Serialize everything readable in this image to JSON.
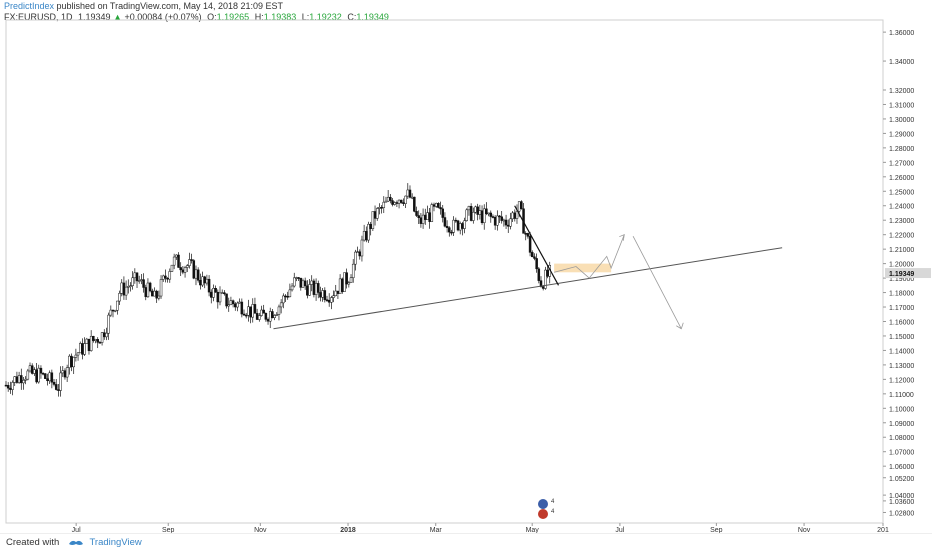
{
  "header": {
    "author": "PredictIndex",
    "published_text": " published on TradingView.com, May 14, 2018 21:09 EST",
    "symbol": "FX:EURUSD, 1D",
    "last": "1.19349",
    "arrow": "▲",
    "change": "+0.00084 (+0.07%)",
    "o_label": "O:",
    "o": "1.19265",
    "h_label": "H:",
    "h": "1.19383",
    "l_label": "L:",
    "l": "1.19232",
    "c_label": "C:",
    "c": "1.19349"
  },
  "footer": {
    "created_with": "Created with",
    "brand": "TradingView"
  },
  "colors": {
    "accent": "#3a86c7",
    "up": "#26a63a",
    "zone": "#f8d9a8",
    "price_badge": "#d8d8d8"
  },
  "chart_data": {
    "type": "candlestick",
    "symbol": "EURUSD",
    "timeframe": "1D",
    "x_tick_labels": [
      "Jul",
      "Sep",
      "Nov",
      "2018",
      "Mar",
      "May",
      "Jul",
      "Sep",
      "Nov",
      "201"
    ],
    "y_tick_labels": [
      "1.36000",
      "1.34000",
      "1.32000",
      "1.31000",
      "1.30000",
      "1.29000",
      "1.28000",
      "1.27000",
      "1.26000",
      "1.25000",
      "1.24000",
      "1.23000",
      "1.22000",
      "1.21000",
      "1.20000",
      "1.19000",
      "1.18000",
      "1.17000",
      "1.16000",
      "1.15000",
      "1.14000",
      "1.13000",
      "1.12000",
      "1.11000",
      "1.10000",
      "1.09000",
      "1.08000",
      "1.07000",
      "1.06000",
      "1.05200",
      "1.04000",
      "1.03600",
      "1.02800"
    ],
    "ylim": [
      1.0228,
      1.367
    ],
    "last_price_label": "1.19349",
    "price_path": [
      {
        "t": 0.0,
        "p": 1.116
      },
      {
        "t": 0.02,
        "p": 1.124
      },
      {
        "t": 0.04,
        "p": 1.123
      },
      {
        "t": 0.06,
        "p": 1.115
      },
      {
        "t": 0.07,
        "p": 1.132
      },
      {
        "t": 0.09,
        "p": 1.143
      },
      {
        "t": 0.11,
        "p": 1.151
      },
      {
        "t": 0.13,
        "p": 1.181
      },
      {
        "t": 0.15,
        "p": 1.189
      },
      {
        "t": 0.17,
        "p": 1.175
      },
      {
        "t": 0.19,
        "p": 1.202
      },
      {
        "t": 0.21,
        "p": 1.198
      },
      {
        "t": 0.23,
        "p": 1.183
      },
      {
        "t": 0.25,
        "p": 1.174
      },
      {
        "t": 0.27,
        "p": 1.171
      },
      {
        "t": 0.29,
        "p": 1.162
      },
      {
        "t": 0.31,
        "p": 1.17
      },
      {
        "t": 0.33,
        "p": 1.188
      },
      {
        "t": 0.35,
        "p": 1.182
      },
      {
        "t": 0.37,
        "p": 1.179
      },
      {
        "t": 0.39,
        "p": 1.19
      },
      {
        "t": 0.4,
        "p": 1.205
      },
      {
        "t": 0.42,
        "p": 1.233
      },
      {
        "t": 0.44,
        "p": 1.245
      },
      {
        "t": 0.46,
        "p": 1.247
      },
      {
        "t": 0.47,
        "p": 1.228
      },
      {
        "t": 0.49,
        "p": 1.237
      },
      {
        "t": 0.51,
        "p": 1.225
      },
      {
        "t": 0.53,
        "p": 1.235
      },
      {
        "t": 0.55,
        "p": 1.232
      },
      {
        "t": 0.57,
        "p": 1.229
      },
      {
        "t": 0.585,
        "p": 1.238
      },
      {
        "t": 0.6,
        "p": 1.205
      },
      {
        "t": 0.61,
        "p": 1.187
      },
      {
        "t": 0.62,
        "p": 1.193
      }
    ],
    "t_axis": {
      "jul": 0.08,
      "sep": 0.185,
      "nov": 0.29,
      "y2018": 0.39,
      "mar": 0.49,
      "may": 0.6,
      "jul2": 0.7,
      "sep2": 0.81,
      "nov2": 0.91,
      "y2019": 1.0
    },
    "drawings": {
      "support_trendline": [
        [
          0.305,
          1.155
        ],
        [
          0.885,
          1.211
        ]
      ],
      "down_trendline": [
        [
          0.58,
          1.24
        ],
        [
          0.63,
          1.185
        ]
      ],
      "target_zone": {
        "t0": 0.625,
        "t1": 0.69,
        "p0": 1.194,
        "p1": 1.2
      },
      "projection_up": [
        [
          0.625,
          1.194
        ],
        [
          0.65,
          1.198
        ],
        [
          0.665,
          1.19
        ],
        [
          0.685,
          1.205
        ],
        [
          0.69,
          1.197
        ],
        [
          0.705,
          1.22
        ]
      ],
      "projection_down": [
        [
          0.715,
          1.219
        ],
        [
          0.77,
          1.155
        ]
      ]
    }
  }
}
